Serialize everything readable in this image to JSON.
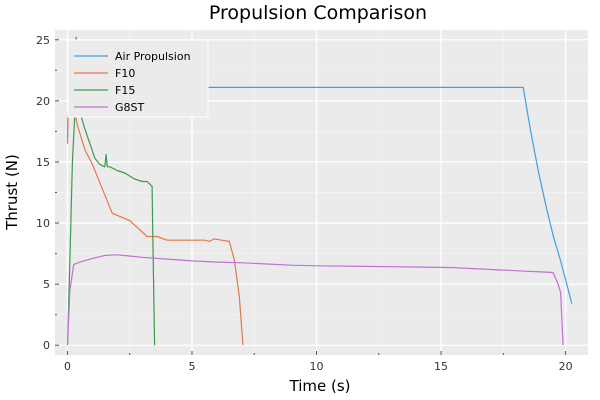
{
  "chart_data": {
    "type": "line",
    "title": "Propulsion Comparison",
    "xlabel": "Time (s)",
    "ylabel": "Thrust (N)",
    "xlim": [
      -0.5,
      20.9
    ],
    "ylim": [
      -0.8,
      25.8
    ],
    "xticks": [
      0,
      5,
      10,
      15,
      20
    ],
    "yticks": [
      0,
      5,
      10,
      15,
      20,
      25
    ],
    "xminor": [
      2.5,
      7.5,
      12.5,
      17.5
    ],
    "yminor": [
      2.5,
      7.5,
      12.5,
      17.5,
      22.5
    ],
    "grid": true,
    "legend_position": "top-left",
    "series": [
      {
        "name": "Air Propulsion",
        "color": "#3ea0e6",
        "x": [
          0.0,
          0.02,
          0.05,
          0.08,
          0.1,
          1.0,
          3.0,
          5.0,
          8.0,
          12.0,
          16.0,
          18.3,
          18.6,
          18.9,
          19.2,
          19.5,
          19.8,
          20.05,
          20.25
        ],
        "y": [
          17.0,
          19.0,
          20.6,
          21.1,
          21.1,
          21.1,
          21.1,
          21.1,
          21.1,
          21.1,
          21.1,
          21.1,
          17.5,
          14.3,
          11.5,
          9.0,
          6.9,
          5.0,
          3.4
        ]
      },
      {
        "name": "F10",
        "color": "#e5774a",
        "x": [
          0.0,
          0.05,
          0.1,
          0.2,
          0.4,
          0.7,
          1.0,
          1.3,
          1.8,
          2.5,
          3.2,
          3.6,
          4.0,
          5.0,
          5.5,
          5.7,
          5.9,
          6.2,
          6.5,
          6.7,
          6.9,
          7.05
        ],
        "y": [
          16.5,
          22.3,
          21.0,
          20.0,
          18.0,
          16.0,
          14.8,
          13.3,
          10.8,
          10.2,
          8.9,
          8.9,
          8.6,
          8.6,
          8.6,
          8.5,
          8.7,
          8.6,
          8.5,
          7.0,
          4.0,
          0.0
        ]
      },
      {
        "name": "F15",
        "color": "#3d9a4c",
        "x": [
          0.0,
          0.1,
          0.2,
          0.3,
          0.35,
          0.45,
          0.55,
          0.7,
          0.9,
          1.1,
          1.3,
          1.5,
          1.55,
          1.6,
          1.7,
          2.0,
          2.3,
          2.7,
          3.0,
          3.2,
          3.3,
          3.4,
          3.42,
          3.5
        ],
        "y": [
          0.0,
          7.0,
          15.0,
          19.0,
          25.2,
          20.5,
          18.7,
          17.7,
          16.5,
          15.3,
          14.8,
          14.6,
          15.6,
          14.6,
          14.6,
          14.3,
          14.1,
          13.6,
          13.4,
          13.4,
          13.2,
          13.0,
          10.0,
          0.0
        ]
      },
      {
        "name": "G8ST",
        "color": "#c271d4",
        "x": [
          0.0,
          0.1,
          0.25,
          0.5,
          1.0,
          1.5,
          2.0,
          2.5,
          3.0,
          4.0,
          5.0,
          6.0,
          7.0,
          8.0,
          9.0,
          10.0,
          12.0,
          14.0,
          15.5,
          16.5,
          17.5,
          18.5,
          19.0,
          19.5,
          19.7,
          19.8,
          19.9
        ],
        "y": [
          0.0,
          4.5,
          6.6,
          6.8,
          7.1,
          7.35,
          7.4,
          7.3,
          7.2,
          7.05,
          6.9,
          6.8,
          6.75,
          6.65,
          6.55,
          6.5,
          6.45,
          6.4,
          6.35,
          6.25,
          6.15,
          6.05,
          6.0,
          5.95,
          5.0,
          4.3,
          0.0
        ]
      }
    ]
  }
}
